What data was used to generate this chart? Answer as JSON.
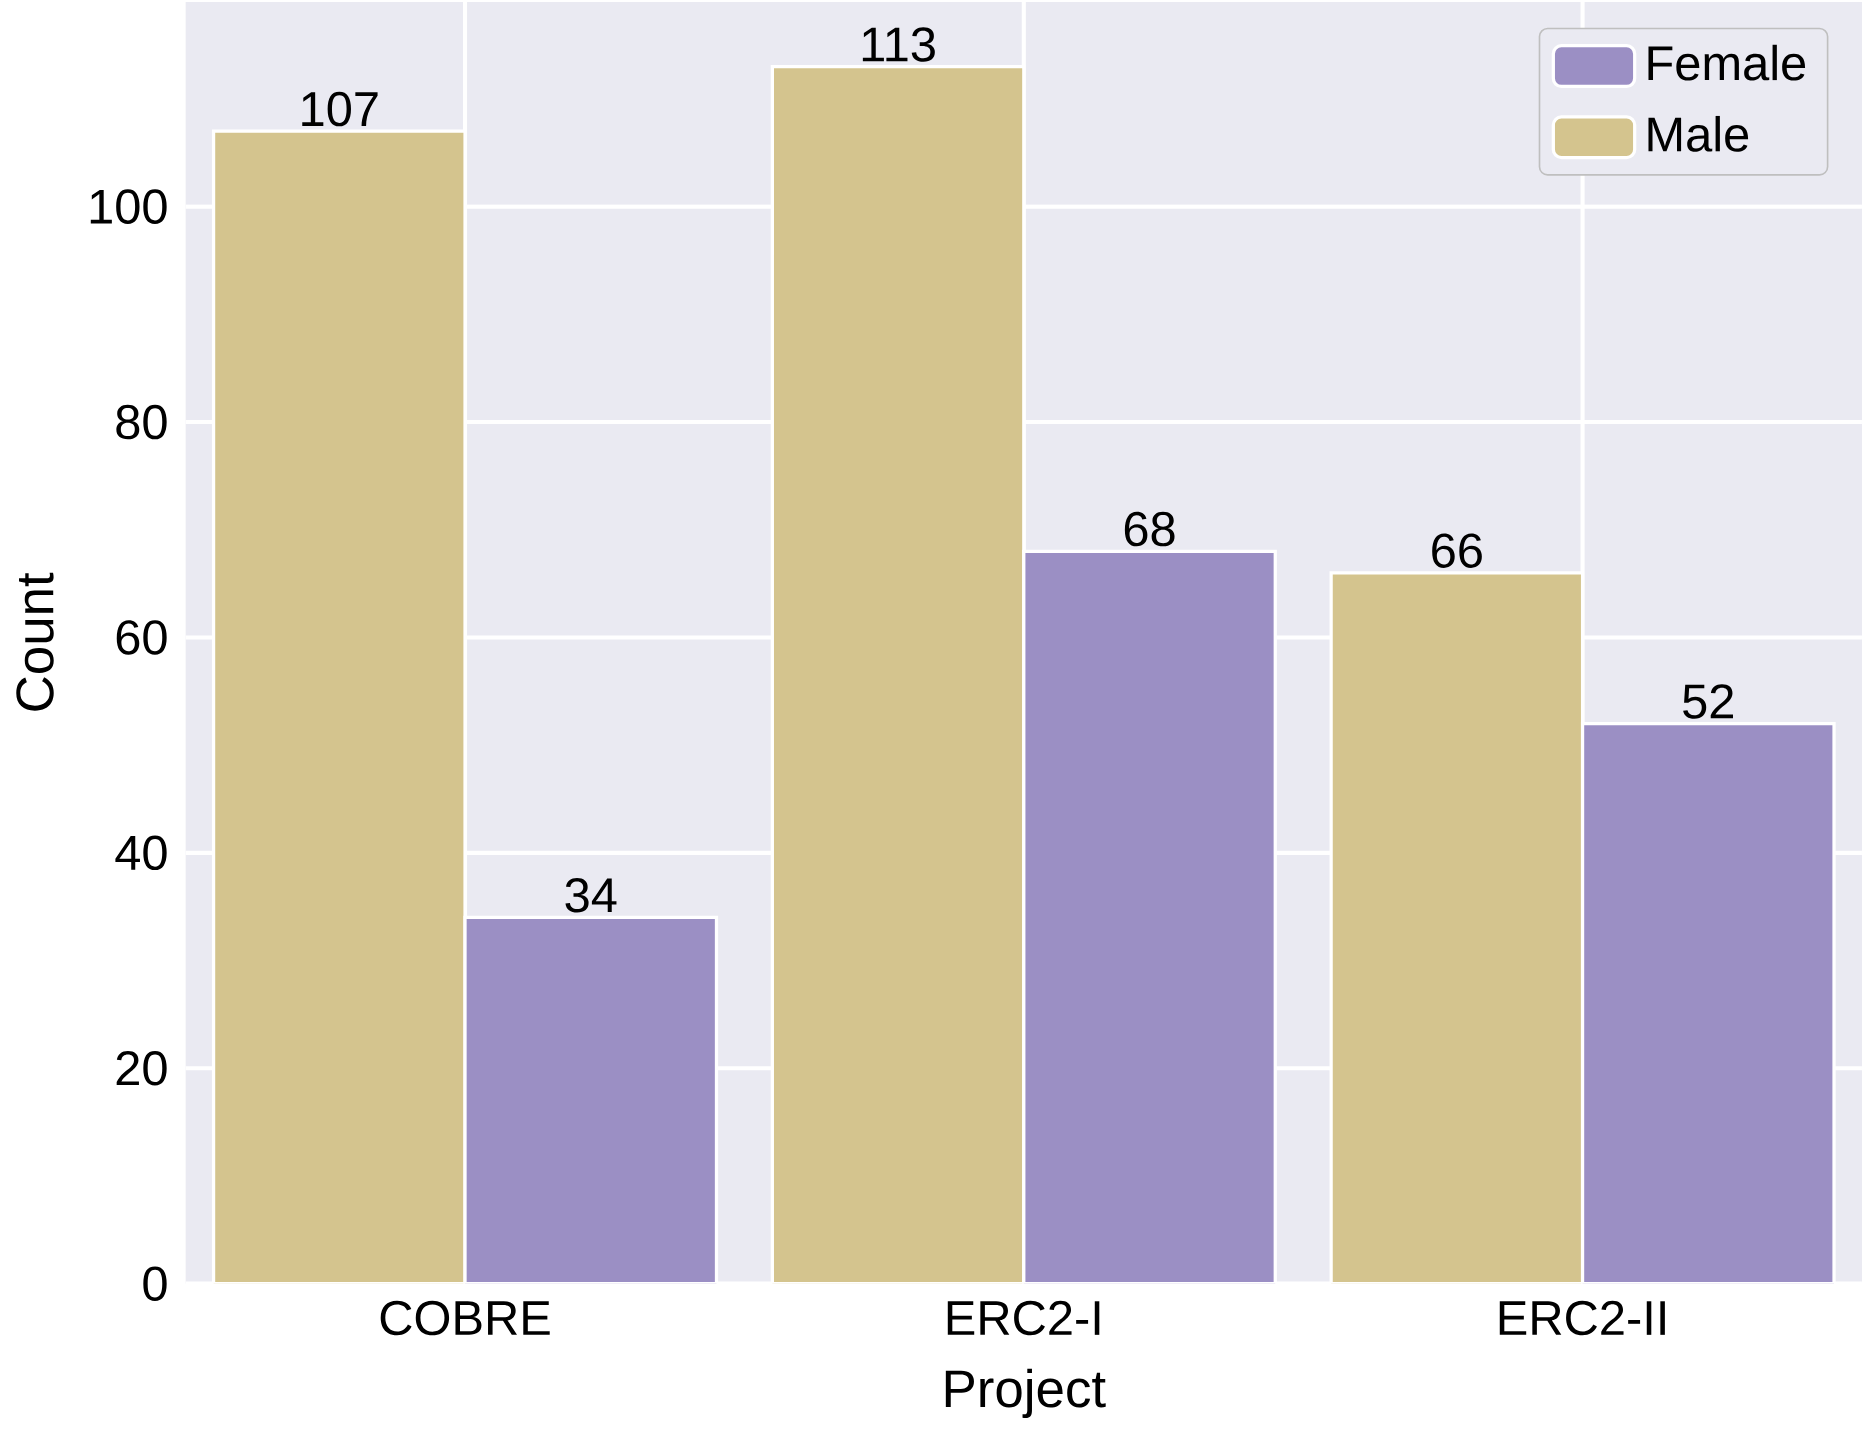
{
  "chart_data": {
    "type": "bar",
    "xlabel": "Project",
    "ylabel": "Count",
    "categories": [
      "COBRE",
      "ERC2-I",
      "ERC2-II"
    ],
    "series": [
      {
        "name": "Male",
        "color": "#d4c48e",
        "values": [
          107,
          113,
          66
        ]
      },
      {
        "name": "Female",
        "color": "#9b8fc4",
        "values": [
          34,
          68,
          52
        ]
      }
    ],
    "ylim": [
      0,
      119
    ],
    "yticks": [
      0,
      20,
      40,
      60,
      80,
      100
    ],
    "grid": true,
    "legend": "top right",
    "data_labels": true
  }
}
